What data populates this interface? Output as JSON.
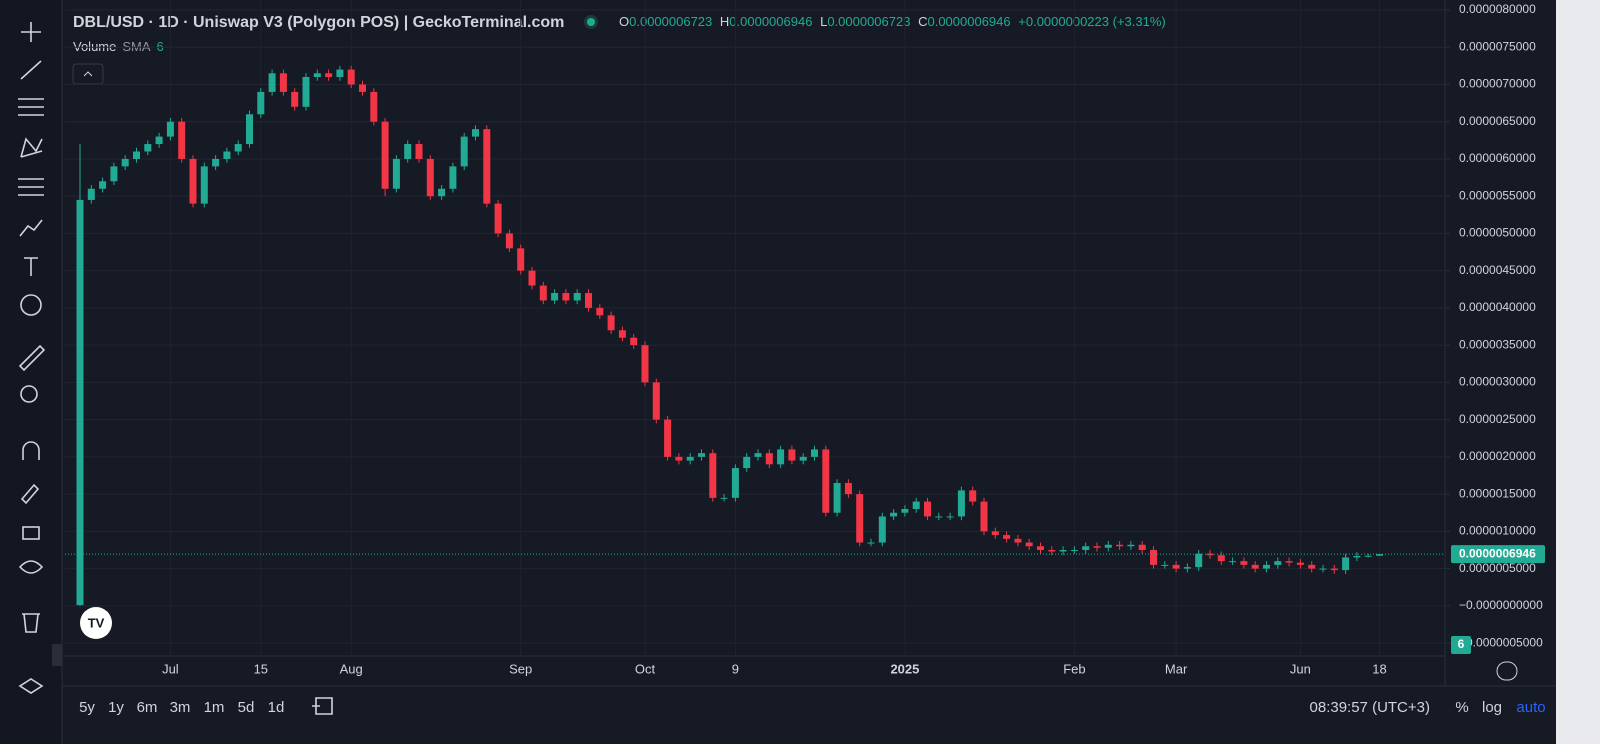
{
  "header": {
    "title": "DBL/USD · 1D · Uniswap V3 (Polygon POS) | GeckoTerminal.com",
    "ohlc": [
      {
        "key": "O",
        "value": "0.0000006723"
      },
      {
        "key": "H",
        "value": "0.0000006946"
      },
      {
        "key": "L",
        "value": "0.0000006723"
      },
      {
        "key": "C",
        "value": "0.0000006946"
      }
    ],
    "change": "+0.0000000223 (+3.31%)",
    "volume_label": "Volume",
    "sma_label": "SMA",
    "sma_length": 6
  },
  "chart_data": {
    "type": "candlestick",
    "categories": [
      null,
      null,
      null,
      null,
      null,
      null,
      null,
      null,
      "Jul",
      null,
      null,
      null,
      null,
      null,
      null,
      null,
      "15",
      null,
      null,
      null,
      null,
      null,
      null,
      null,
      "Aug",
      null,
      null,
      null,
      null,
      null,
      null,
      null,
      null,
      null,
      null,
      null,
      null,
      null,
      null,
      "Sep",
      null,
      null,
      null,
      null,
      null,
      null,
      null,
      null,
      null,
      null,
      "Oct",
      null,
      null,
      null,
      null,
      null,
      null,
      null,
      "9",
      null,
      null,
      null,
      null,
      null,
      null,
      null,
      null,
      null,
      null,
      null,
      null,
      null,
      null,
      "2025",
      null,
      null,
      null,
      null,
      null,
      null,
      null,
      null,
      null,
      null,
      null,
      null,
      null,
      null,
      "Feb",
      null,
      null,
      null,
      null,
      null,
      null,
      null,
      null,
      "Mar",
      null,
      null,
      null,
      null,
      null,
      null,
      null,
      null,
      null,
      null,
      "Jun",
      null,
      null,
      null,
      null,
      null,
      null,
      "18"
    ],
    "open": [
      1e-08,
      5.45e-06,
      5.6e-06,
      5.7e-06,
      5.9e-06,
      6e-06,
      6.1e-06,
      6.2e-06,
      6.3e-06,
      6.5e-06,
      6e-06,
      5.4e-06,
      5.9e-06,
      6e-06,
      6.1e-06,
      6.2e-06,
      6.6e-06,
      6.9e-06,
      7.15e-06,
      6.9e-06,
      6.7e-06,
      7.1e-06,
      7.15e-06,
      7.1e-06,
      7.2e-06,
      7e-06,
      6.9e-06,
      6.5e-06,
      5.6e-06,
      6e-06,
      6.2e-06,
      6e-06,
      5.5e-06,
      5.6e-06,
      5.9e-06,
      6.3e-06,
      6.4e-06,
      5.4e-06,
      5e-06,
      4.8e-06,
      4.5e-06,
      4.3e-06,
      4.1e-06,
      4.2e-06,
      4.1e-06,
      4.2e-06,
      4e-06,
      3.9e-06,
      3.7e-06,
      3.6e-06,
      3.5e-06,
      3e-06,
      2.5e-06,
      2e-06,
      1.95e-06,
      2e-06,
      2.05e-06,
      1.45e-06,
      1.45e-06,
      1.85e-06,
      2e-06,
      2.05e-06,
      1.9e-06,
      2.1e-06,
      1.95e-06,
      2e-06,
      2.1e-06,
      1.25e-06,
      1.65e-06,
      1.5e-06,
      8.5e-07,
      8.5e-07,
      1.2e-06,
      1.25e-06,
      1.3e-06,
      1.4e-06,
      1.2e-06,
      1.2e-06,
      1.2e-06,
      1.55e-06,
      1.4e-06,
      1e-06,
      9.5e-07,
      9e-07,
      8.5e-07,
      8e-07,
      7.5e-07,
      7.3e-07,
      7.5e-07,
      7.5e-07,
      8e-07,
      7.8e-07,
      8.2e-07,
      8e-07,
      8.2e-07,
      7.5e-07,
      5.5e-07,
      5.5e-07,
      5e-07,
      5.2e-07,
      7e-07,
      6.8e-07,
      6e-07,
      6e-07,
      5.5e-07,
      5e-07,
      5.5e-07,
      6e-07,
      5.8e-07,
      5.5e-07,
      5e-07,
      5e-07,
      4.8e-07,
      6.5e-07,
      6.7e-07,
      6.723e-07
    ],
    "high": [
      6.2e-06,
      5.65e-06,
      5.75e-06,
      5.95e-06,
      6.05e-06,
      6.15e-06,
      6.25e-06,
      6.35e-06,
      6.55e-06,
      6.55e-06,
      6.05e-06,
      5.95e-06,
      6.05e-06,
      6.15e-06,
      6.25e-06,
      6.65e-06,
      6.95e-06,
      7.2e-06,
      7.2e-06,
      6.95e-06,
      7.15e-06,
      7.2e-06,
      7.2e-06,
      7.25e-06,
      7.25e-06,
      7.05e-06,
      6.95e-06,
      6.55e-06,
      6.05e-06,
      6.25e-06,
      6.25e-06,
      6.05e-06,
      5.65e-06,
      5.95e-06,
      6.35e-06,
      6.45e-06,
      6.45e-06,
      5.45e-06,
      5.05e-06,
      4.85e-06,
      4.55e-06,
      4.35e-06,
      4.25e-06,
      4.25e-06,
      4.25e-06,
      4.25e-06,
      4.05e-06,
      3.95e-06,
      3.75e-06,
      3.65e-06,
      3.55e-06,
      3.05e-06,
      2.55e-06,
      2.05e-06,
      2.05e-06,
      2.1e-06,
      2.1e-06,
      1.5e-06,
      1.9e-06,
      2.05e-06,
      2.1e-06,
      2.1e-06,
      2.15e-06,
      2.15e-06,
      2.05e-06,
      2.15e-06,
      2.15e-06,
      1.7e-06,
      1.7e-06,
      1.55e-06,
      9e-07,
      1.25e-06,
      1.3e-06,
      1.35e-06,
      1.45e-06,
      1.45e-06,
      1.25e-06,
      1.25e-06,
      1.6e-06,
      1.6e-06,
      1.45e-06,
      1.05e-06,
      1e-06,
      9.5e-07,
      9e-07,
      8.5e-07,
      8e-07,
      8e-07,
      8e-07,
      8.5e-07,
      8.5e-07,
      8.7e-07,
      8.7e-07,
      8.7e-07,
      8.7e-07,
      8e-07,
      6e-07,
      6e-07,
      5.7e-07,
      7.5e-07,
      7.5e-07,
      7.3e-07,
      6.5e-07,
      6.5e-07,
      6e-07,
      6e-07,
      6.5e-07,
      6.5e-07,
      6.3e-07,
      6e-07,
      5.5e-07,
      5.5e-07,
      7e-07,
      7.2e-07,
      7e-07,
      6.946e-07
    ],
    "low": [
      0,
      5.4e-06,
      5.55e-06,
      5.65e-06,
      5.85e-06,
      5.95e-06,
      6.05e-06,
      6.15e-06,
      6.25e-06,
      5.95e-06,
      5.35e-06,
      5.35e-06,
      5.85e-06,
      5.95e-06,
      6.05e-06,
      6.15e-06,
      6.55e-06,
      6.85e-06,
      6.85e-06,
      6.65e-06,
      6.65e-06,
      7.05e-06,
      7.05e-06,
      7.05e-06,
      6.95e-06,
      6.85e-06,
      6.45e-06,
      5.5e-06,
      5.55e-06,
      5.95e-06,
      5.95e-06,
      5.45e-06,
      5.45e-06,
      5.55e-06,
      5.85e-06,
      6.25e-06,
      5.35e-06,
      4.95e-06,
      4.75e-06,
      4.45e-06,
      4.25e-06,
      4.05e-06,
      4.05e-06,
      4.05e-06,
      4.05e-06,
      3.95e-06,
      3.85e-06,
      3.65e-06,
      3.55e-06,
      3.45e-06,
      2.95e-06,
      2.45e-06,
      1.95e-06,
      1.9e-06,
      1.9e-06,
      1.95e-06,
      1.4e-06,
      1.4e-06,
      1.4e-06,
      1.8e-06,
      1.95e-06,
      1.85e-06,
      1.85e-06,
      1.9e-06,
      1.9e-06,
      1.95e-06,
      1.2e-06,
      1.2e-06,
      1.45e-06,
      8e-07,
      8e-07,
      8e-07,
      1.15e-06,
      1.2e-06,
      1.25e-06,
      1.15e-06,
      1.15e-06,
      1.15e-06,
      1.15e-06,
      1.35e-06,
      9.5e-07,
      9e-07,
      8.5e-07,
      8e-07,
      7.5e-07,
      7e-07,
      6.8e-07,
      6.8e-07,
      7e-07,
      7e-07,
      7.3e-07,
      7.3e-07,
      7.5e-07,
      7.5e-07,
      7e-07,
      5e-07,
      5e-07,
      4.5e-07,
      4.5e-07,
      4.7e-07,
      6.3e-07,
      5.5e-07,
      5.5e-07,
      5e-07,
      4.5e-07,
      4.5e-07,
      5e-07,
      5.3e-07,
      5e-07,
      4.5e-07,
      4.5e-07,
      4.3e-07,
      4.3e-07,
      6e-07,
      6.5e-07,
      6.723e-07
    ],
    "close": [
      5.45e-06,
      5.6e-06,
      5.7e-06,
      5.9e-06,
      6e-06,
      6.1e-06,
      6.2e-06,
      6.3e-06,
      6.5e-06,
      6e-06,
      5.4e-06,
      5.9e-06,
      6e-06,
      6.1e-06,
      6.2e-06,
      6.6e-06,
      6.9e-06,
      7.15e-06,
      6.9e-06,
      6.7e-06,
      7.1e-06,
      7.15e-06,
      7.1e-06,
      7.2e-06,
      7e-06,
      6.9e-06,
      6.5e-06,
      5.6e-06,
      6e-06,
      6.2e-06,
      6e-06,
      5.5e-06,
      5.6e-06,
      5.9e-06,
      6.3e-06,
      6.4e-06,
      5.4e-06,
      5e-06,
      4.8e-06,
      4.5e-06,
      4.3e-06,
      4.1e-06,
      4.2e-06,
      4.1e-06,
      4.2e-06,
      4e-06,
      3.9e-06,
      3.7e-06,
      3.6e-06,
      3.5e-06,
      3e-06,
      2.5e-06,
      2e-06,
      1.95e-06,
      2e-06,
      2.05e-06,
      1.45e-06,
      1.45e-06,
      1.85e-06,
      2e-06,
      2.05e-06,
      1.9e-06,
      2.1e-06,
      1.95e-06,
      2e-06,
      2.1e-06,
      1.25e-06,
      1.65e-06,
      1.5e-06,
      8.5e-07,
      8.5e-07,
      1.2e-06,
      1.25e-06,
      1.3e-06,
      1.4e-06,
      1.2e-06,
      1.2e-06,
      1.2e-06,
      1.55e-06,
      1.4e-06,
      1e-06,
      9.5e-07,
      9e-07,
      8.5e-07,
      8e-07,
      7.5e-07,
      7.3e-07,
      7.5e-07,
      7.5e-07,
      8e-07,
      7.8e-07,
      8.2e-07,
      8e-07,
      8.2e-07,
      7.5e-07,
      5.5e-07,
      5.5e-07,
      5e-07,
      5.2e-07,
      7e-07,
      6.8e-07,
      6e-07,
      6e-07,
      5.5e-07,
      5e-07,
      5.5e-07,
      6e-07,
      5.8e-07,
      5.5e-07,
      5e-07,
      5e-07,
      4.8e-07,
      6.5e-07,
      6.7e-07,
      6.723e-07,
      6.946e-07
    ],
    "up_color": "#22ab94",
    "down_color": "#f23645",
    "ylim": [
      -6.6e-07,
      8.134e-06
    ],
    "yticks": [
      {
        "value": 8e-06,
        "label": "0.0000080000"
      },
      {
        "value": 7.5e-06,
        "label": "0.0000075000"
      },
      {
        "value": 7e-06,
        "label": "0.0000070000"
      },
      {
        "value": 6.5e-06,
        "label": "0.0000065000"
      },
      {
        "value": 6e-06,
        "label": "0.0000060000"
      },
      {
        "value": 5.5e-06,
        "label": "0.0000055000"
      },
      {
        "value": 5e-06,
        "label": "0.0000050000"
      },
      {
        "value": 4.5e-06,
        "label": "0.0000045000"
      },
      {
        "value": 4e-06,
        "label": "0.0000040000"
      },
      {
        "value": 3.5e-06,
        "label": "0.0000035000"
      },
      {
        "value": 3e-06,
        "label": "0.0000030000"
      },
      {
        "value": 2.5e-06,
        "label": "0.0000025000"
      },
      {
        "value": 2e-06,
        "label": "0.0000020000"
      },
      {
        "value": 1.5e-06,
        "label": "0.0000015000"
      },
      {
        "value": 1e-06,
        "label": "0.0000010000"
      },
      {
        "value": 5e-07,
        "label": "0.0000005000"
      },
      {
        "value": 0,
        "label": "−0.0000000000"
      },
      {
        "value": -5e-07,
        "label": "−0.0000005000"
      }
    ],
    "grid": true,
    "last_price_label": "0.0000006946",
    "volume_badge": 6
  },
  "timeframes": [
    "5y",
    "1y",
    "6m",
    "3m",
    "1m",
    "5d",
    "1d"
  ],
  "clock": "08:39:57 (UTC+3)",
  "scale_buttons": [
    "%",
    "log",
    "auto"
  ]
}
